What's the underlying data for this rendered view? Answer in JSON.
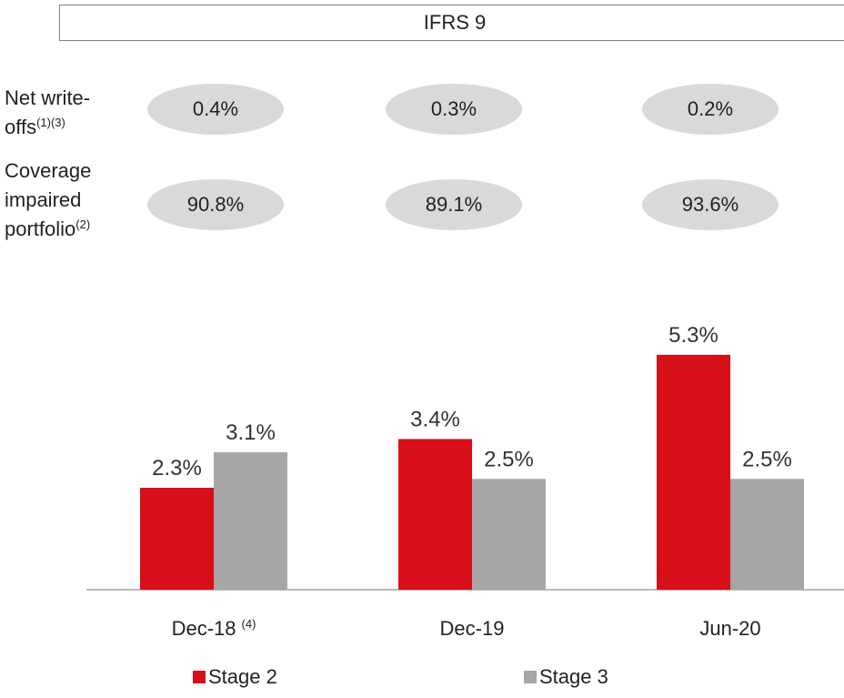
{
  "header": {
    "title": "IFRS 9"
  },
  "metrics": [
    {
      "label": "Net write-offs",
      "note": "(1)(3)",
      "values": [
        "0.4%",
        "0.3%",
        "0.2%"
      ]
    },
    {
      "label": "Coverage impaired portfolio",
      "note": "(2)",
      "values": [
        "90.8%",
        "89.1%",
        "93.6%"
      ]
    }
  ],
  "chart_data": {
    "type": "bar",
    "categories": [
      "Dec-18",
      "Dec-19",
      "Jun-20"
    ],
    "category_notes": [
      "(4)",
      null,
      null
    ],
    "series": [
      {
        "name": "Stage 2",
        "color": "#d7101a",
        "values": [
          2.3,
          3.4,
          5.3
        ],
        "value_labels": [
          "2.3%",
          "3.4%",
          "5.3%"
        ]
      },
      {
        "name": "Stage 3",
        "color": "#a6a6a6",
        "values": [
          3.1,
          2.5,
          2.5
        ],
        "value_labels": [
          "3.1%",
          "2.5%",
          "2.5%"
        ]
      }
    ]
  }
}
